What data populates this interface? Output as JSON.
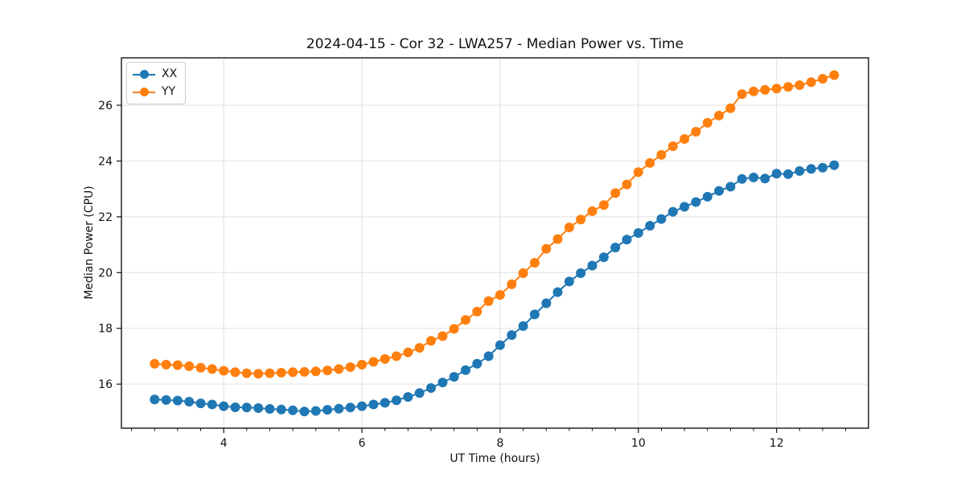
{
  "chart_data": {
    "type": "line",
    "title": "2024-04-15 - Cor 32 - LWA257 - Median Power vs. Time",
    "xlabel": "UT Time (hours)",
    "ylabel": "Median Power (CPU)",
    "xlim": [
      2.52,
      13.33
    ],
    "ylim": [
      14.42,
      27.7
    ],
    "xticks": [
      4,
      6,
      8,
      10,
      12
    ],
    "yticks": [
      16,
      18,
      20,
      22,
      24,
      26
    ],
    "x_minor_step": 0.33333,
    "grid": true,
    "grid_color": "#e0e0e0",
    "legend_position": "upper-left",
    "x": [
      3.0,
      3.167,
      3.333,
      3.5,
      3.667,
      3.833,
      4.0,
      4.167,
      4.333,
      4.5,
      4.667,
      4.833,
      5.0,
      5.167,
      5.333,
      5.5,
      5.667,
      5.833,
      6.0,
      6.167,
      6.333,
      6.5,
      6.667,
      6.833,
      7.0,
      7.167,
      7.333,
      7.5,
      7.667,
      7.833,
      8.0,
      8.167,
      8.333,
      8.5,
      8.667,
      8.833,
      9.0,
      9.167,
      9.333,
      9.5,
      9.667,
      9.833,
      10.0,
      10.167,
      10.333,
      10.5,
      10.667,
      10.833,
      11.0,
      11.167,
      11.333,
      11.5,
      11.667,
      11.833,
      12.0,
      12.167,
      12.333,
      12.5,
      12.667,
      12.833
    ],
    "series": [
      {
        "name": "XX",
        "color": "#1f77b4",
        "values": [
          15.45,
          15.43,
          15.41,
          15.37,
          15.31,
          15.27,
          15.21,
          15.17,
          15.16,
          15.14,
          15.11,
          15.09,
          15.06,
          15.02,
          15.04,
          15.08,
          15.12,
          15.16,
          15.21,
          15.27,
          15.33,
          15.42,
          15.54,
          15.68,
          15.86,
          16.06,
          16.26,
          16.5,
          16.73,
          17.0,
          17.4,
          17.76,
          18.08,
          18.5,
          18.9,
          19.3,
          19.68,
          19.98,
          20.25,
          20.55,
          20.9,
          21.18,
          21.42,
          21.68,
          21.92,
          22.18,
          22.36,
          22.53,
          22.72,
          22.93,
          23.08,
          23.36,
          23.41,
          23.37,
          23.55,
          23.53,
          23.64,
          23.72,
          23.76,
          23.85
        ]
      },
      {
        "name": "YY",
        "color": "#ff7f0e",
        "values": [
          16.73,
          16.7,
          16.68,
          16.64,
          16.59,
          16.54,
          16.48,
          16.43,
          16.39,
          16.37,
          16.39,
          16.41,
          16.43,
          16.44,
          16.46,
          16.49,
          16.54,
          16.61,
          16.7,
          16.8,
          16.9,
          17.0,
          17.14,
          17.3,
          17.55,
          17.72,
          17.98,
          18.3,
          18.6,
          18.98,
          19.2,
          19.58,
          19.98,
          20.35,
          20.85,
          21.2,
          21.62,
          21.9,
          22.2,
          22.42,
          22.85,
          23.16,
          23.6,
          23.93,
          24.22,
          24.53,
          24.79,
          25.05,
          25.37,
          25.63,
          25.89,
          26.4,
          26.5,
          26.55,
          26.6,
          26.66,
          26.72,
          26.83,
          26.95,
          27.08
        ]
      }
    ]
  }
}
